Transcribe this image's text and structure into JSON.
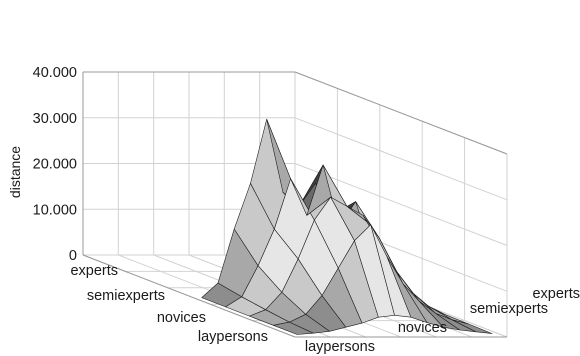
{
  "chart_data": {
    "type": "surface-3d",
    "zlabel": "distance",
    "zlim": [
      0,
      40000
    ],
    "z_ticks": [
      "0",
      "10.000",
      "20.000",
      "30.000",
      "40.000"
    ],
    "x_categories": [
      "laypersons",
      "novices",
      "semiexperts",
      "experts"
    ],
    "y_categories": [
      "experts",
      "semiexperts",
      "novices",
      "laypersons"
    ],
    "grid": true,
    "surface": {
      "x_steps": 13,
      "y_steps": 5,
      "z": [
        [
          0,
          300,
          700,
          1600,
          2500,
          3800,
          4200,
          3800,
          2600,
          1600,
          1000,
          600,
          200
        ],
        [
          0,
          700,
          2400,
          6500,
          12500,
          18500,
          22000,
          15000,
          9000,
          5200,
          2600,
          1200,
          300
        ],
        [
          0,
          1400,
          5200,
          12500,
          21000,
          26000,
          24000,
          22000,
          17000,
          10000,
          5200,
          2200,
          400
        ],
        [
          0,
          2200,
          9000,
          17000,
          28000,
          20000,
          31000,
          17500,
          23000,
          12000,
          6500,
          2600,
          500
        ],
        [
          0,
          3200,
          15000,
          25000,
          39000,
          23000,
          20000,
          25000,
          18000,
          14000,
          7000,
          3000,
          400
        ]
      ]
    }
  }
}
